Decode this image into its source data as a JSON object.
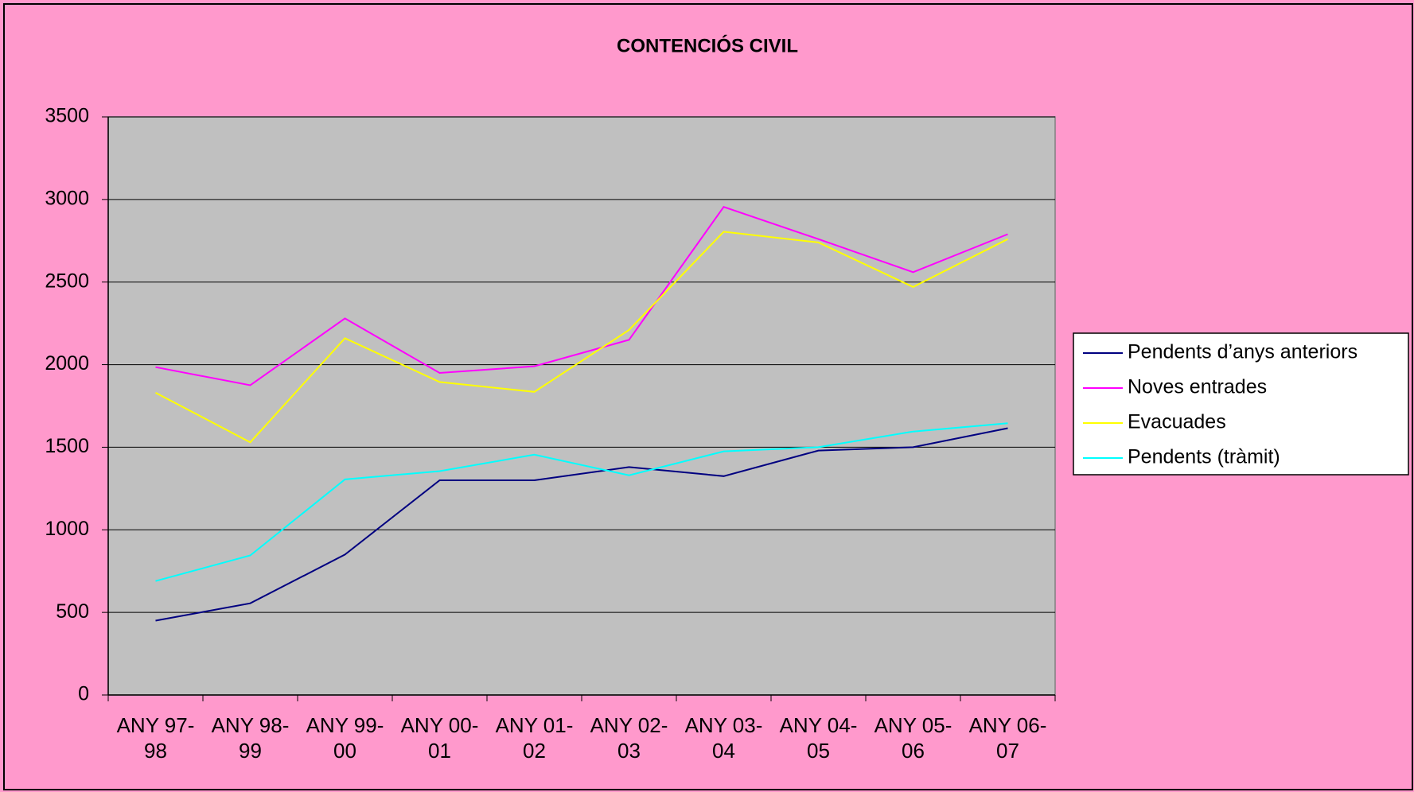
{
  "chart_data": {
    "type": "line",
    "title": "CONTENCIÓS CIVIL",
    "categories": [
      "ANY 97-98",
      "ANY 98-99",
      "ANY 99-00",
      "ANY 00-01",
      "ANY 01-02",
      "ANY 02-03",
      "ANY 03-04",
      "ANY 04-05",
      "ANY 05-06",
      "ANY 06-07"
    ],
    "series": [
      {
        "name": "Pendents d’anys anteriors",
        "color": "#000080",
        "values": [
          450,
          555,
          850,
          1300,
          1300,
          1380,
          1325,
          1480,
          1500,
          1615
        ]
      },
      {
        "name": "Noves entrades",
        "color": "#ff00ff",
        "values": [
          1985,
          1875,
          2280,
          1950,
          1990,
          2150,
          2955,
          2760,
          2560,
          2790
        ]
      },
      {
        "name": "Evacuades",
        "color": "#ffff00",
        "values": [
          1830,
          1530,
          2160,
          1895,
          1835,
          2210,
          2805,
          2740,
          2470,
          2760
        ]
      },
      {
        "name": "Pendents (tràmit)",
        "color": "#00ffff",
        "values": [
          690,
          845,
          1305,
          1355,
          1455,
          1330,
          1475,
          1500,
          1595,
          1645
        ]
      }
    ],
    "ylim": [
      0,
      3500
    ],
    "yticks": [
      0,
      500,
      1000,
      1500,
      2000,
      2500,
      3000,
      3500
    ],
    "grid": true,
    "legend": "right"
  }
}
